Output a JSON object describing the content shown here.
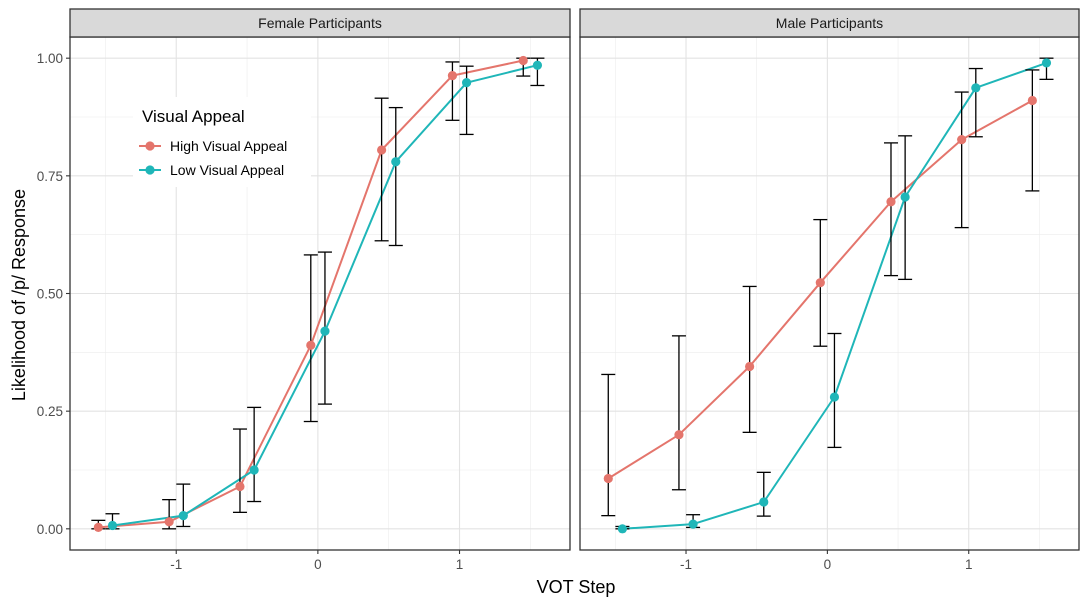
{
  "chart_data": {
    "type": "line",
    "xlabel": "VOT Step",
    "ylabel": "Likelihood of /p/ Response",
    "xlim": [
      -1.75,
      1.78
    ],
    "ylim": [
      -0.045,
      1.045
    ],
    "x_ticks": [
      -1,
      0,
      1
    ],
    "x_tick_labels": [
      "-1",
      "0",
      "1"
    ],
    "y_ticks": [
      0,
      0.25,
      0.5,
      0.75,
      1
    ],
    "y_tick_labels": [
      "0.00",
      "0.25",
      "0.50",
      "0.75",
      "1.00"
    ],
    "legend": {
      "title": "Visual Appeal",
      "entries": [
        "High Visual Appeal",
        "Low Visual Appeal"
      ],
      "placement": "top-left inside first panel"
    },
    "series_colors": {
      "High Visual Appeal": "#E4756C",
      "Low Visual Appeal": "#1FB6B8"
    },
    "grid": true,
    "panels": [
      {
        "title": "Female Participants",
        "series": [
          {
            "name": "High Visual Appeal",
            "x": [
              -1.55,
              -1.05,
              -0.55,
              -0.05,
              0.45,
              0.95,
              1.45
            ],
            "values": [
              0.003,
              0.015,
              0.09,
              0.39,
              0.805,
              0.963,
              0.995
            ],
            "lower": [
              0.0,
              0.0,
              0.035,
              0.228,
              0.612,
              0.868,
              0.962
            ],
            "upper": [
              0.018,
              0.062,
              0.212,
              0.582,
              0.915,
              0.992,
              1.0
            ]
          },
          {
            "name": "Low Visual Appeal",
            "x": [
              -1.45,
              -0.95,
              -0.45,
              0.05,
              0.55,
              1.05,
              1.55
            ],
            "values": [
              0.007,
              0.028,
              0.125,
              0.42,
              0.78,
              0.948,
              0.985
            ],
            "lower": [
              0.0,
              0.005,
              0.058,
              0.265,
              0.602,
              0.838,
              0.942
            ],
            "upper": [
              0.032,
              0.095,
              0.258,
              0.588,
              0.895,
              0.983,
              1.0
            ]
          }
        ]
      },
      {
        "title": "Male Participants",
        "series": [
          {
            "name": "High Visual Appeal",
            "x": [
              -1.55,
              -1.05,
              -0.55,
              -0.05,
              0.45,
              0.95,
              1.45
            ],
            "values": [
              0.107,
              0.2,
              0.345,
              0.523,
              0.695,
              0.827,
              0.91
            ],
            "lower": [
              0.028,
              0.083,
              0.205,
              0.388,
              0.538,
              0.64,
              0.718
            ],
            "upper": [
              0.328,
              0.41,
              0.515,
              0.657,
              0.82,
              0.928,
              0.975
            ]
          },
          {
            "name": "Low Visual Appeal",
            "x": [
              -1.45,
              -0.95,
              -0.45,
              0.05,
              0.55,
              1.05,
              1.55
            ],
            "values": [
              0.0,
              0.01,
              0.057,
              0.28,
              0.705,
              0.937,
              0.99
            ],
            "lower": [
              0.0,
              0.003,
              0.027,
              0.173,
              0.53,
              0.833,
              0.955
            ],
            "upper": [
              0.005,
              0.03,
              0.12,
              0.415,
              0.835,
              0.978,
              1.0
            ]
          }
        ]
      }
    ]
  }
}
